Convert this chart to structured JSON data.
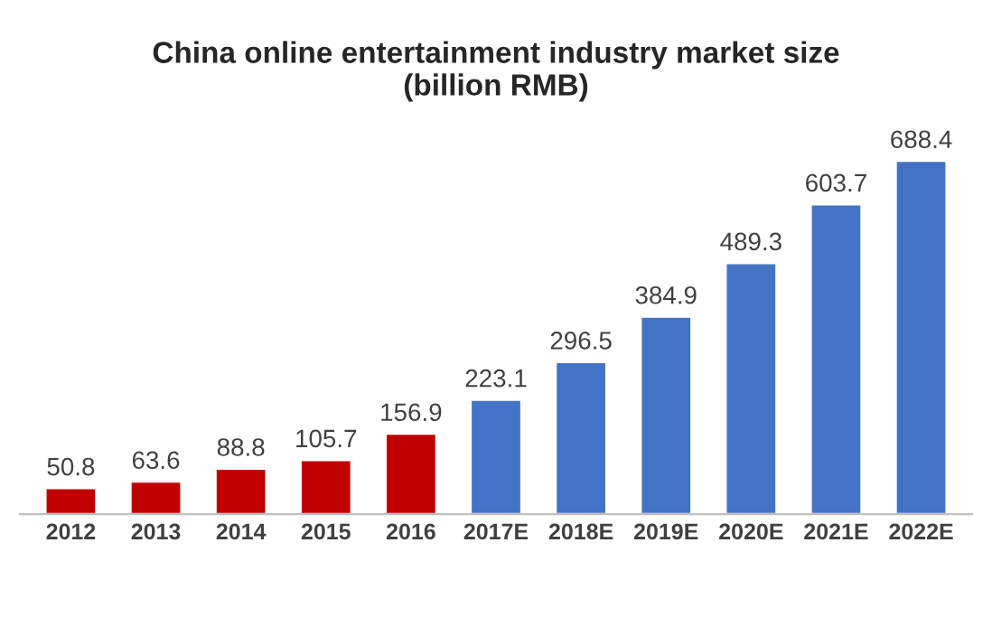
{
  "chart_data": {
    "type": "bar",
    "title": "China online entertainment industry market size\n(billion RMB)",
    "categories": [
      "2012",
      "2013",
      "2014",
      "2015",
      "2016",
      "2017E",
      "2018E",
      "2019E",
      "2020E",
      "2021E",
      "2022E"
    ],
    "values": [
      50.8,
      63.6,
      88.8,
      105.7,
      156.9,
      223.1,
      296.5,
      384.9,
      489.3,
      603.7,
      688.4
    ],
    "colors": [
      "#c00000",
      "#c00000",
      "#c00000",
      "#c00000",
      "#c00000",
      "#4472c4",
      "#4472c4",
      "#4472c4",
      "#4472c4",
      "#4472c4",
      "#4472c4"
    ],
    "data_labels": true,
    "grid": false,
    "legend": false
  }
}
